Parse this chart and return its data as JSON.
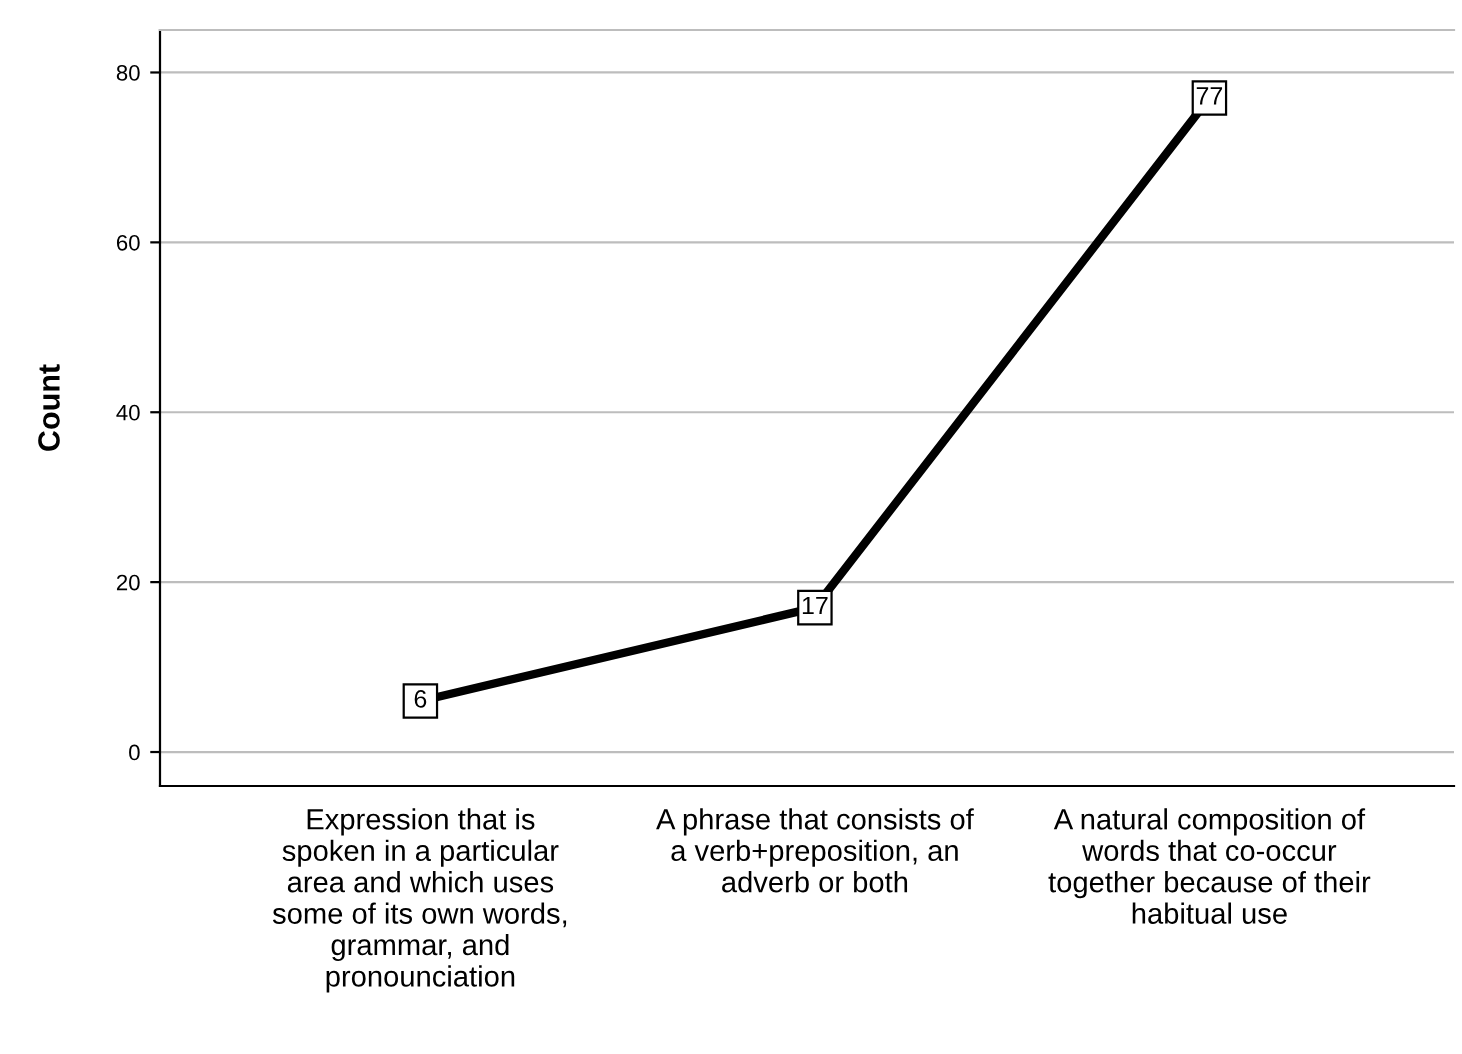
{
  "chart_data": {
    "type": "line",
    "ylabel": "Count",
    "categories": [
      "Expression that is\nspoken in a particular\narea and which uses\nsome of its own words,\ngrammar, and\npronounciation",
      "A phrase that consists of\na verb+preposition, an\nadverb or both",
      "A natural composition of\nwords that co-occur\ntogether because of their\nhabitual use"
    ],
    "values": [
      6,
      17,
      77
    ],
    "color": "#000000",
    "ylim": [
      -4,
      85
    ],
    "yticks": [
      0,
      20,
      40,
      60,
      80
    ],
    "grid": "y",
    "data_labels": true,
    "marker": "square",
    "line_style": "solid"
  }
}
